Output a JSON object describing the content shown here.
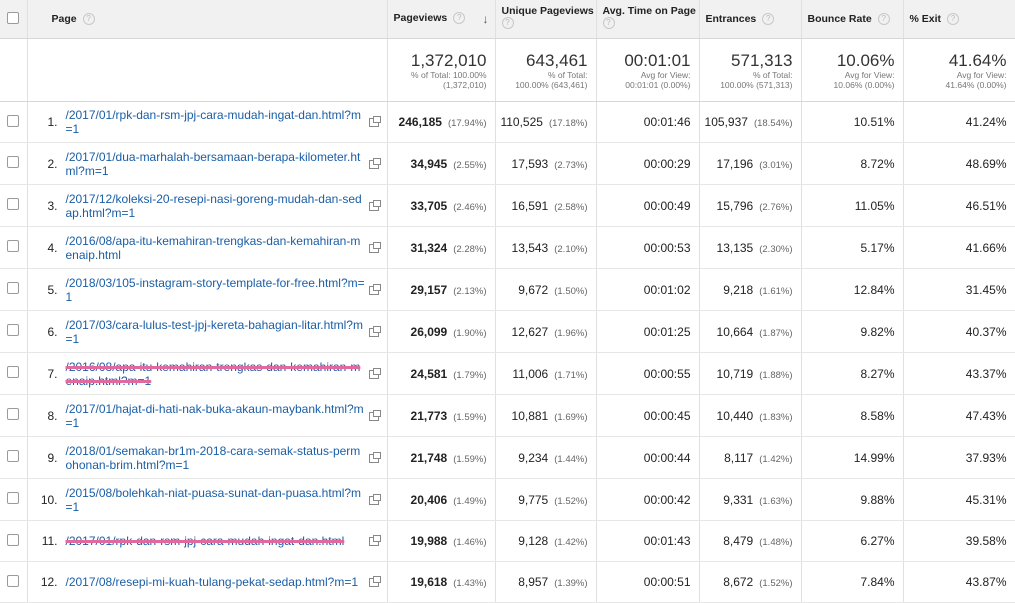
{
  "columns": {
    "page": "Page",
    "pageviews": "Pageviews",
    "unique": "Unique Pageviews",
    "avg_time": "Avg. Time on Page",
    "entrances": "Entrances",
    "bounce": "Bounce Rate",
    "exit": "% Exit"
  },
  "totals": {
    "pageviews": "1,372,010",
    "pageviews_note1": "% of Total: 100.00%",
    "pageviews_note2": "(1,372,010)",
    "unique": "643,461",
    "unique_note1": "% of Total:",
    "unique_note2": "100.00% (643,461)",
    "avg_time": "00:01:01",
    "avg_time_note1": "Avg for View:",
    "avg_time_note2": "00:01:01 (0.00%)",
    "entrances": "571,313",
    "entrances_note1": "% of Total:",
    "entrances_note2": "100.00% (571,313)",
    "bounce": "10.06%",
    "bounce_note1": "Avg for View:",
    "bounce_note2": "10.06% (0.00%)",
    "exit": "41.64%",
    "exit_note1": "Avg for View:",
    "exit_note2": "41.64% (0.00%)"
  },
  "rows": [
    {
      "idx": "1.",
      "page": "/2017/01/rpk-dan-rsm-jpj-cara-mudah-ingat-dan.html?m=1",
      "pv": "246,185",
      "pv_pct": "(17.94%)",
      "upv": "110,525",
      "upv_pct": "(17.18%)",
      "time": "00:01:46",
      "ent": "105,937",
      "ent_pct": "(18.54%)",
      "bounce": "10.51%",
      "exit": "41.24%"
    },
    {
      "idx": "2.",
      "page": "/2017/01/dua-marhalah-bersamaan-berapa-kilometer.html?m=1",
      "pv": "34,945",
      "pv_pct": "(2.55%)",
      "upv": "17,593",
      "upv_pct": "(2.73%)",
      "time": "00:00:29",
      "ent": "17,196",
      "ent_pct": "(3.01%)",
      "bounce": "8.72%",
      "exit": "48.69%"
    },
    {
      "idx": "3.",
      "page": "/2017/12/koleksi-20-resepi-nasi-goreng-mudah-dan-sedap.html?m=1",
      "pv": "33,705",
      "pv_pct": "(2.46%)",
      "upv": "16,591",
      "upv_pct": "(2.58%)",
      "time": "00:00:49",
      "ent": "15,796",
      "ent_pct": "(2.76%)",
      "bounce": "11.05%",
      "exit": "46.51%"
    },
    {
      "idx": "4.",
      "page": "/2016/08/apa-itu-kemahiran-trengkas-dan-kemahiran-menaip.html",
      "pv": "31,324",
      "pv_pct": "(2.28%)",
      "upv": "13,543",
      "upv_pct": "(2.10%)",
      "time": "00:00:53",
      "ent": "13,135",
      "ent_pct": "(2.30%)",
      "bounce": "5.17%",
      "exit": "41.66%"
    },
    {
      "idx": "5.",
      "page": "/2018/03/105-instagram-story-template-for-free.html?m=1",
      "pv": "29,157",
      "pv_pct": "(2.13%)",
      "upv": "9,672",
      "upv_pct": "(1.50%)",
      "time": "00:01:02",
      "ent": "9,218",
      "ent_pct": "(1.61%)",
      "bounce": "12.84%",
      "exit": "31.45%"
    },
    {
      "idx": "6.",
      "page": "/2017/03/cara-lulus-test-jpj-kereta-bahagian-litar.html?m=1",
      "pv": "26,099",
      "pv_pct": "(1.90%)",
      "upv": "12,627",
      "upv_pct": "(1.96%)",
      "time": "00:01:25",
      "ent": "10,664",
      "ent_pct": "(1.87%)",
      "bounce": "9.82%",
      "exit": "40.37%"
    },
    {
      "idx": "7.",
      "page": "/2016/08/apa-itu-kemahiran-trengkas-dan-kemahiran-menaip.html?m=1",
      "pv": "24,581",
      "pv_pct": "(1.79%)",
      "upv": "11,006",
      "upv_pct": "(1.71%)",
      "time": "00:00:55",
      "ent": "10,719",
      "ent_pct": "(1.88%)",
      "bounce": "8.27%",
      "exit": "43.37%"
    },
    {
      "idx": "8.",
      "page": "/2017/01/hajat-di-hati-nak-buka-akaun-maybank.html?m=1",
      "pv": "21,773",
      "pv_pct": "(1.59%)",
      "upv": "10,881",
      "upv_pct": "(1.69%)",
      "time": "00:00:45",
      "ent": "10,440",
      "ent_pct": "(1.83%)",
      "bounce": "8.58%",
      "exit": "47.43%"
    },
    {
      "idx": "9.",
      "page": "/2018/01/semakan-br1m-2018-cara-semak-status-permohonan-brim.html?m=1",
      "pv": "21,748",
      "pv_pct": "(1.59%)",
      "upv": "9,234",
      "upv_pct": "(1.44%)",
      "time": "00:00:44",
      "ent": "8,117",
      "ent_pct": "(1.42%)",
      "bounce": "14.99%",
      "exit": "37.93%"
    },
    {
      "idx": "10.",
      "page": "/2015/08/bolehkah-niat-puasa-sunat-dan-puasa.html?m=1",
      "pv": "20,406",
      "pv_pct": "(1.49%)",
      "upv": "9,775",
      "upv_pct": "(1.52%)",
      "time": "00:00:42",
      "ent": "9,331",
      "ent_pct": "(1.63%)",
      "bounce": "9.88%",
      "exit": "45.31%"
    },
    {
      "idx": "11.",
      "page": "/2017/01/rpk-dan-rsm-jpj-cara-mudah-ingat-dan.html",
      "pv": "19,988",
      "pv_pct": "(1.46%)",
      "upv": "9,128",
      "upv_pct": "(1.42%)",
      "time": "00:01:43",
      "ent": "8,479",
      "ent_pct": "(1.48%)",
      "bounce": "6.27%",
      "exit": "39.58%"
    },
    {
      "idx": "12.",
      "page": "/2017/08/resepi-mi-kuah-tulang-pekat-sedap.html?m=1",
      "pv": "19,618",
      "pv_pct": "(1.43%)",
      "upv": "8,957",
      "upv_pct": "(1.39%)",
      "time": "00:00:51",
      "ent": "8,672",
      "ent_pct": "(1.52%)",
      "bounce": "7.84%",
      "exit": "43.87%"
    }
  ]
}
